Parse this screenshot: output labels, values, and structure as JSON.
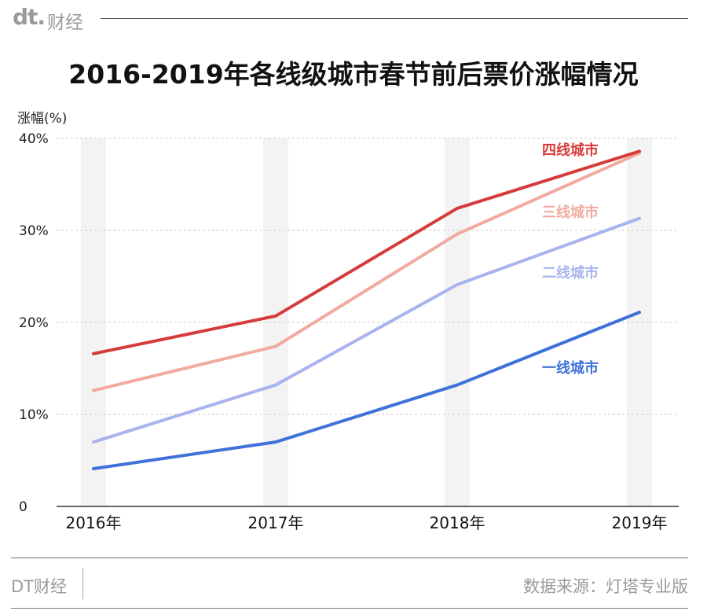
{
  "brand": {
    "logo": "dt.",
    "name": "财经"
  },
  "footer": {
    "brand": "DT财经",
    "source": "数据来源：灯塔专业版"
  },
  "chart_data": {
    "type": "line",
    "title": "2016-2019年各线级城市春节前后票价涨幅情况",
    "ylabel": "涨幅(%)",
    "xlabel": "",
    "categories": [
      "2016年",
      "2017年",
      "2018年",
      "2019年"
    ],
    "yticks": [
      "0",
      "10%",
      "20%",
      "30%",
      "40%"
    ],
    "ylim": [
      0,
      40
    ],
    "grid": "horizontal dashed",
    "legend": "inline labels at right end of lines",
    "series": [
      {
        "name": "四线城市",
        "color": "#d63b3b",
        "values": [
          16.6,
          20.7,
          32.4,
          38.6
        ]
      },
      {
        "name": "三线城市",
        "color": "#f2aaa0",
        "values": [
          12.6,
          17.4,
          29.6,
          38.4
        ]
      },
      {
        "name": "二线城市",
        "color": "#a9b3ee",
        "values": [
          7.0,
          13.2,
          24.1,
          31.3
        ]
      },
      {
        "name": "一线城市",
        "color": "#3f72d8",
        "values": [
          4.1,
          7.0,
          13.2,
          21.1
        ]
      }
    ]
  }
}
